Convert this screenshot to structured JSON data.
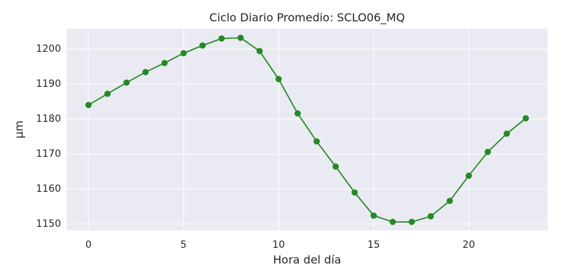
{
  "chart_data": {
    "type": "line",
    "title": "Ciclo Diario Promedio: SCLO06_MQ",
    "x_label": "Hora del día",
    "y_label": "µm",
    "x": [
      0,
      1,
      2,
      3,
      4,
      5,
      6,
      7,
      8,
      9,
      10,
      11,
      12,
      13,
      14,
      15,
      16,
      17,
      18,
      19,
      20,
      21,
      22,
      23
    ],
    "series": [
      {
        "name": "SCLO06_MQ",
        "color": "#228b22",
        "values": [
          1184.0,
          1187.2,
          1190.4,
          1193.4,
          1196.0,
          1198.8,
          1201.0,
          1203.0,
          1203.2,
          1199.4,
          1191.4,
          1181.6,
          1173.6,
          1166.4,
          1159.0,
          1152.4,
          1150.6,
          1150.6,
          1152.2,
          1156.6,
          1163.8,
          1170.6,
          1175.8,
          1180.2
        ]
      }
    ],
    "xlim": [
      -1.15,
      24.15
    ],
    "xticks": [
      0,
      5,
      10,
      15,
      20
    ],
    "ylim": [
      1148.2,
      1205.8
    ],
    "yticks": [
      1150,
      1160,
      1170,
      1180,
      1190,
      1200
    ],
    "grid": true
  }
}
